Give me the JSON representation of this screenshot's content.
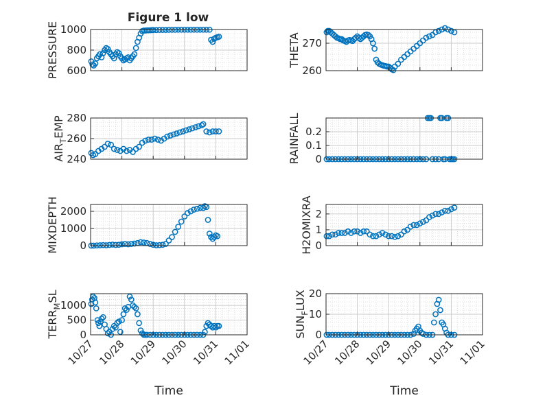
{
  "figure": {
    "title": "Figure 1 low"
  },
  "colors": {
    "marker": "#0072BD",
    "axis": "#262626",
    "grid": "#d9d9d9"
  },
  "x_axis": {
    "tick_labels": [
      "10/27",
      "10/28",
      "10/29",
      "10/30",
      "10/31",
      "11/01"
    ],
    "xlabel": "Time"
  },
  "chart_data": [
    {
      "type": "scatter",
      "panel": "PRESSURE",
      "ylabel": "PRESSURE",
      "ylim": [
        600,
        1000
      ],
      "yticks": [
        600,
        800,
        1000
      ],
      "xlim": [
        0,
        5
      ],
      "grid": "major+minor",
      "x": [
        0.02,
        0.06,
        0.1,
        0.15,
        0.2,
        0.25,
        0.3,
        0.35,
        0.4,
        0.45,
        0.5,
        0.55,
        0.6,
        0.65,
        0.7,
        0.75,
        0.8,
        0.85,
        0.9,
        0.95,
        1.0,
        1.05,
        1.1,
        1.15,
        1.2,
        1.25,
        1.3,
        1.35,
        1.4,
        1.45,
        1.5,
        1.55,
        1.6,
        1.65,
        1.7,
        1.75,
        1.8,
        1.85,
        1.9,
        1.95,
        2.0,
        2.1,
        2.2,
        2.3,
        2.4,
        2.5,
        2.6,
        2.7,
        2.8,
        2.9,
        3.0,
        3.1,
        3.2,
        3.3,
        3.4,
        3.5,
        3.6,
        3.7,
        3.8,
        3.85,
        3.9,
        3.95,
        4.0,
        4.05,
        4.1
      ],
      "y": [
        690,
        660,
        650,
        670,
        720,
        740,
        760,
        730,
        770,
        800,
        820,
        810,
        780,
        760,
        740,
        720,
        760,
        780,
        770,
        740,
        720,
        700,
        710,
        720,
        730,
        700,
        720,
        740,
        760,
        820,
        880,
        920,
        960,
        985,
        990,
        990,
        992,
        992,
        993,
        994,
        995,
        995,
        996,
        996,
        996,
        997,
        997,
        997,
        998,
        998,
        998,
        998,
        998,
        998,
        998,
        998,
        998,
        998,
        998,
        900,
        880,
        910,
        920,
        925,
        930
      ]
    },
    {
      "type": "scatter",
      "panel": "THETA",
      "ylabel": "THETA",
      "ylim": [
        260,
        275
      ],
      "yticks": [
        260,
        270
      ],
      "xlim": [
        0,
        5
      ],
      "grid": "major+minor",
      "x": [
        0.02,
        0.06,
        0.1,
        0.15,
        0.2,
        0.25,
        0.3,
        0.35,
        0.4,
        0.45,
        0.5,
        0.55,
        0.6,
        0.65,
        0.7,
        0.75,
        0.8,
        0.85,
        0.9,
        0.95,
        1.0,
        1.05,
        1.1,
        1.15,
        1.2,
        1.25,
        1.3,
        1.35,
        1.4,
        1.45,
        1.5,
        1.55,
        1.6,
        1.65,
        1.7,
        1.75,
        1.8,
        1.85,
        1.9,
        1.95,
        2.0,
        2.05,
        2.1,
        2.15,
        2.2,
        2.3,
        2.4,
        2.5,
        2.6,
        2.7,
        2.8,
        2.9,
        3.0,
        3.1,
        3.2,
        3.3,
        3.4,
        3.5,
        3.6,
        3.7,
        3.8,
        3.9,
        4.0,
        4.1
      ],
      "y": [
        274,
        274.5,
        274.5,
        274,
        273.5,
        273,
        272.5,
        272,
        271.8,
        271.5,
        271.5,
        271,
        270.8,
        270.5,
        271,
        271.2,
        271,
        270.8,
        271.5,
        272,
        272.5,
        272,
        271.5,
        272,
        272.5,
        273,
        273.2,
        273,
        272.5,
        271.5,
        270,
        268,
        264,
        263,
        262.5,
        262.2,
        262,
        261.8,
        261.7,
        261.5,
        261.5,
        261,
        260.5,
        260.2,
        261.5,
        262.5,
        264,
        265,
        266,
        267,
        268,
        269,
        270,
        271,
        272,
        272.5,
        273,
        274,
        274.5,
        275,
        275.5,
        275,
        274.5,
        274
      ]
    },
    {
      "type": "scatter",
      "panel": "AIR_TEMP",
      "ylabel": "AIR_TEMP",
      "ylim": [
        240,
        280
      ],
      "yticks": [
        240,
        260,
        280
      ],
      "xlim": [
        0,
        5
      ],
      "grid": "major+minor",
      "x": [
        0.02,
        0.08,
        0.15,
        0.25,
        0.35,
        0.45,
        0.55,
        0.65,
        0.75,
        0.85,
        0.95,
        1.05,
        1.15,
        1.25,
        1.35,
        1.45,
        1.55,
        1.65,
        1.75,
        1.85,
        1.95,
        2.05,
        2.15,
        2.25,
        2.35,
        2.45,
        2.55,
        2.65,
        2.75,
        2.85,
        2.95,
        3.05,
        3.15,
        3.25,
        3.35,
        3.45,
        3.55,
        3.6,
        3.7,
        3.8,
        3.9,
        4.0,
        4.1
      ],
      "y": [
        246,
        244,
        245,
        248,
        250,
        252,
        255,
        254,
        250,
        249,
        248,
        250,
        248,
        249,
        247,
        250,
        252,
        256,
        258,
        259,
        259,
        260,
        259,
        258,
        260,
        262,
        263,
        264,
        265,
        266,
        267,
        268,
        269,
        270,
        271,
        272,
        273,
        274,
        267,
        266,
        267,
        267,
        267
      ]
    },
    {
      "type": "scatter",
      "panel": "RAINFALL",
      "ylabel": "RAINFALL",
      "ylim": [
        0,
        0.3
      ],
      "yticks": [
        0,
        0.1,
        0.2
      ],
      "xlim": [
        0,
        5
      ],
      "grid": "major+minor",
      "x": [
        0.02,
        0.1,
        0.2,
        0.3,
        0.4,
        0.5,
        0.6,
        0.7,
        0.8,
        0.9,
        1.0,
        1.1,
        1.2,
        1.3,
        1.4,
        1.5,
        1.6,
        1.7,
        1.8,
        1.9,
        2.0,
        2.1,
        2.2,
        2.3,
        2.4,
        2.5,
        2.6,
        2.7,
        2.8,
        2.9,
        3.0,
        3.1,
        3.2,
        3.25,
        3.3,
        3.35,
        3.4,
        3.5,
        3.6,
        3.65,
        3.7,
        3.75,
        3.8,
        3.85,
        3.9,
        3.95,
        4.0,
        4.05,
        4.1
      ],
      "y": [
        0,
        0,
        0,
        0,
        0,
        0,
        0,
        0,
        0,
        0,
        0,
        0,
        0,
        0,
        0,
        0,
        0,
        0,
        0,
        0,
        0,
        0,
        0,
        0,
        0,
        0,
        0,
        0,
        0,
        0,
        0,
        0,
        0,
        0.3,
        0.3,
        0.3,
        0,
        0,
        0,
        0.3,
        0.3,
        0,
        0,
        0.3,
        0.3,
        0,
        0,
        0,
        0
      ]
    },
    {
      "type": "scatter",
      "panel": "MIXDEPTH",
      "ylabel": "MIXDEPTH",
      "ylim": [
        0,
        2400
      ],
      "yticks": [
        0,
        1000,
        2000
      ],
      "xlim": [
        0,
        5
      ],
      "grid": "major+minor",
      "x": [
        0.02,
        0.1,
        0.2,
        0.3,
        0.4,
        0.5,
        0.6,
        0.7,
        0.8,
        0.9,
        1.0,
        1.1,
        1.2,
        1.3,
        1.4,
        1.5,
        1.6,
        1.7,
        1.8,
        1.9,
        2.0,
        2.1,
        2.2,
        2.3,
        2.4,
        2.5,
        2.6,
        2.7,
        2.8,
        2.9,
        3.0,
        3.1,
        3.2,
        3.3,
        3.4,
        3.5,
        3.6,
        3.65,
        3.7,
        3.75,
        3.8,
        3.85,
        3.9,
        3.95,
        4.0,
        4.05
      ],
      "y": [
        0,
        0,
        10,
        20,
        30,
        20,
        40,
        60,
        40,
        50,
        80,
        100,
        80,
        100,
        120,
        150,
        200,
        180,
        150,
        100,
        50,
        20,
        30,
        50,
        100,
        300,
        500,
        800,
        1100,
        1400,
        1700,
        1900,
        2000,
        2100,
        2150,
        2200,
        2200,
        2300,
        2250,
        1500,
        700,
        500,
        400,
        500,
        600,
        550
      ]
    },
    {
      "type": "scatter",
      "panel": "H2OMIXRA",
      "ylabel": "H2OMIXRA",
      "ylim": [
        0,
        2.6
      ],
      "yticks": [
        0,
        1,
        2
      ],
      "xlim": [
        0,
        5
      ],
      "grid": "major+minor",
      "x": [
        0.02,
        0.1,
        0.2,
        0.3,
        0.4,
        0.5,
        0.6,
        0.7,
        0.8,
        0.9,
        1.0,
        1.1,
        1.2,
        1.3,
        1.4,
        1.5,
        1.6,
        1.7,
        1.8,
        1.9,
        2.0,
        2.1,
        2.2,
        2.3,
        2.4,
        2.5,
        2.6,
        2.7,
        2.8,
        2.9,
        3.0,
        3.1,
        3.2,
        3.3,
        3.4,
        3.5,
        3.6,
        3.7,
        3.8,
        3.9,
        4.0,
        4.1
      ],
      "y": [
        0.6,
        0.6,
        0.7,
        0.7,
        0.8,
        0.8,
        0.8,
        0.9,
        0.8,
        0.9,
        0.9,
        0.8,
        0.9,
        0.9,
        0.7,
        0.6,
        0.6,
        0.7,
        0.8,
        0.7,
        0.6,
        0.6,
        0.55,
        0.6,
        0.7,
        0.9,
        1.0,
        1.2,
        1.3,
        1.3,
        1.4,
        1.5,
        1.6,
        1.8,
        1.9,
        2.0,
        2.0,
        2.1,
        2.2,
        2.2,
        2.3,
        2.4
      ]
    },
    {
      "type": "scatter",
      "panel": "TERR_MSL",
      "ylabel": "TERR_MSL",
      "ylim": [
        0,
        1400
      ],
      "yticks": [
        0,
        500,
        1000
      ],
      "xlim": [
        0,
        5
      ],
      "grid": "major+minor",
      "x": [
        0.02,
        0.05,
        0.08,
        0.12,
        0.15,
        0.18,
        0.22,
        0.25,
        0.28,
        0.32,
        0.35,
        0.4,
        0.45,
        0.5,
        0.55,
        0.6,
        0.65,
        0.7,
        0.75,
        0.8,
        0.85,
        0.9,
        0.95,
        1.0,
        1.05,
        1.1,
        1.15,
        1.2,
        1.25,
        1.3,
        1.35,
        1.4,
        1.45,
        1.5,
        1.55,
        1.6,
        1.65,
        1.7,
        1.75,
        1.8,
        1.9,
        2.0,
        2.1,
        2.2,
        2.3,
        2.4,
        2.5,
        2.6,
        2.7,
        2.8,
        2.9,
        3.0,
        3.1,
        3.2,
        3.3,
        3.4,
        3.5,
        3.6,
        3.65,
        3.7,
        3.75,
        3.8,
        3.85,
        3.9,
        3.95,
        4.0,
        4.05,
        4.1
      ],
      "y": [
        1050,
        1200,
        1300,
        1250,
        1100,
        900,
        500,
        400,
        300,
        450,
        550,
        600,
        350,
        200,
        50,
        100,
        0,
        200,
        300,
        250,
        400,
        450,
        100,
        500,
        700,
        900,
        850,
        950,
        1300,
        1200,
        1000,
        950,
        900,
        700,
        400,
        150,
        50,
        0,
        0,
        0,
        0,
        0,
        0,
        0,
        0,
        0,
        0,
        0,
        0,
        0,
        0,
        0,
        0,
        0,
        0,
        0,
        0,
        0,
        100,
        300,
        400,
        350,
        300,
        250,
        300,
        250,
        300,
        300
      ]
    },
    {
      "type": "scatter",
      "panel": "SUN_FLUX",
      "ylabel": "SUN_FLUX",
      "ylim": [
        0,
        20
      ],
      "yticks": [
        0,
        10,
        20
      ],
      "xlim": [
        0,
        5
      ],
      "grid": "major+minor",
      "x": [
        0.02,
        0.1,
        0.2,
        0.3,
        0.4,
        0.5,
        0.6,
        0.7,
        0.8,
        0.9,
        1.0,
        1.1,
        1.2,
        1.3,
        1.4,
        1.5,
        1.6,
        1.7,
        1.8,
        1.9,
        2.0,
        2.1,
        2.2,
        2.3,
        2.4,
        2.5,
        2.6,
        2.7,
        2.8,
        2.85,
        2.9,
        2.95,
        3.0,
        3.05,
        3.1,
        3.2,
        3.3,
        3.4,
        3.45,
        3.5,
        3.55,
        3.6,
        3.65,
        3.7,
        3.75,
        3.8,
        3.85,
        3.9,
        4.0,
        4.1
      ],
      "y": [
        0,
        0,
        0,
        0,
        0,
        0,
        0,
        0,
        0,
        0,
        0,
        0,
        0,
        0,
        0,
        0,
        0,
        0,
        0,
        0,
        0,
        0,
        0,
        0,
        0,
        0,
        0,
        0,
        0.5,
        2,
        3,
        4,
        2,
        1,
        0.5,
        0,
        0,
        0,
        6,
        10,
        15,
        17,
        12,
        6,
        5,
        3,
        1,
        0,
        0,
        0
      ]
    }
  ]
}
